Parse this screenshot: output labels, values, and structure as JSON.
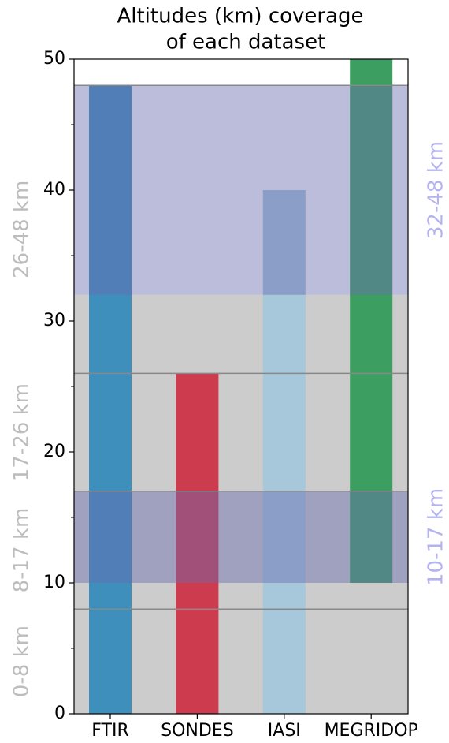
{
  "chart_data": {
    "type": "range_bar",
    "title": [
      "Altitudes (km) coverage",
      "of each dataset"
    ],
    "categories": [
      "FTIR",
      "SONDES",
      "IASI",
      "MEGRIDOP"
    ],
    "series": [
      {
        "name": "bottom",
        "values": [
          0,
          0,
          0,
          10
        ]
      },
      {
        "name": "top",
        "values": [
          48,
          26,
          40,
          50
        ]
      }
    ],
    "colors": [
      "#3f8fbd",
      "#cc3b4e",
      "#a6c8da",
      "#3d9e62"
    ],
    "ylim": [
      0,
      50
    ],
    "yticks": [
      0,
      10,
      20,
      30,
      40,
      50
    ],
    "yminorticks": [
      5,
      15,
      25,
      35,
      45
    ],
    "bands": [
      {
        "from": 0,
        "to": 32,
        "color": "#cccccc"
      },
      {
        "from": 10,
        "to": 17,
        "color": "#6a6ab0"
      },
      {
        "from": 32,
        "to": 48,
        "color": "#6a6ab0"
      }
    ],
    "hlines": [
      8,
      17,
      26,
      48
    ],
    "left_labels": [
      {
        "label": "0-8 km",
        "from": 0,
        "to": 8
      },
      {
        "label": "8-17 km",
        "from": 8,
        "to": 17
      },
      {
        "label": "17-26 km",
        "from": 17,
        "to": 26
      },
      {
        "label": "26-48 km",
        "from": 26,
        "to": 48
      }
    ],
    "right_labels": [
      {
        "label": "10-17 km",
        "from": 10,
        "to": 17
      },
      {
        "label": "32-48 km",
        "from": 32,
        "to": 48
      }
    ]
  }
}
